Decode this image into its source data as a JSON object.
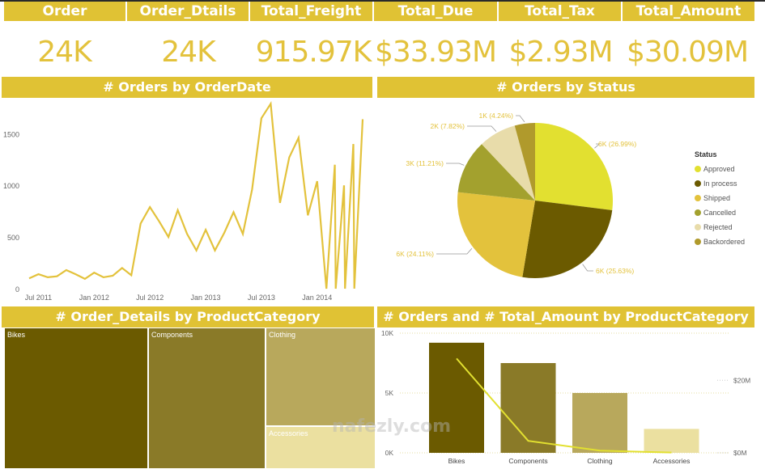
{
  "kpis": [
    {
      "label": "Order",
      "value": "24K"
    },
    {
      "label": "Order_Dtails",
      "value": "24K"
    },
    {
      "label": "Total_Freight",
      "value": "915.97K"
    },
    {
      "label": "Total_Due",
      "value": "$33.93M"
    },
    {
      "label": "Total_Tax",
      "value": "$2.93M"
    },
    {
      "label": "Total_Amount",
      "value": "$30.09M"
    }
  ],
  "colors": {
    "header_gold": "#e0c234",
    "kpi_text": "#e3c23c",
    "line": "#e3c23c"
  },
  "watermark": "nafezly.com",
  "chart_data": [
    {
      "type": "line",
      "title": "# Orders by OrderDate",
      "xlabel": "",
      "ylabel": "",
      "ylim": [
        0,
        1800
      ],
      "yticks": [
        "0",
        "500",
        "1000",
        "1500"
      ],
      "ytick_values": [
        0,
        500,
        1000,
        1500
      ],
      "xticks": [
        "Jul 2011",
        "Jan 2012",
        "Jul 2012",
        "Jan 2013",
        "Jul 2013",
        "Jan 2014"
      ],
      "xtick_positions": [
        1,
        7,
        13,
        19,
        25,
        31
      ],
      "x": [
        0,
        1,
        2,
        3,
        4,
        5,
        6,
        7,
        8,
        9,
        10,
        11,
        12,
        13,
        14,
        15,
        16,
        17,
        18,
        19,
        20,
        21,
        22,
        23,
        24,
        25,
        26,
        27,
        28,
        29,
        30,
        31,
        32,
        32.9,
        33,
        33.9,
        34,
        34.9,
        35,
        35.9
      ],
      "values": [
        100,
        140,
        110,
        120,
        180,
        140,
        95,
        155,
        110,
        125,
        200,
        130,
        630,
        790,
        650,
        500,
        760,
        530,
        370,
        570,
        370,
        540,
        740,
        530,
        960,
        1650,
        1790,
        830,
        1270,
        1460,
        710,
        1040,
        0,
        1200,
        0,
        1000,
        0,
        1400,
        0,
        1640
      ],
      "grid": false
    },
    {
      "type": "pie",
      "title": "# Orders by Status",
      "legend_title": "Status",
      "legend_position": "right",
      "slices": [
        {
          "name": "Approved",
          "label": "6K (26.99%)",
          "percent": 26.99,
          "color": "#e2e030"
        },
        {
          "name": "In process",
          "label": "6K (25.63%)",
          "percent": 25.63,
          "color": "#6b5a00"
        },
        {
          "name": "Shipped",
          "label": "6K (24.11%)",
          "percent": 24.11,
          "color": "#e3c23c"
        },
        {
          "name": "Cancelled",
          "label": "3K (11.21%)",
          "percent": 11.21,
          "color": "#a3a12e"
        },
        {
          "name": "Rejected",
          "label": "2K (7.82%)",
          "percent": 7.82,
          "color": "#e8dcaa"
        },
        {
          "name": "Backordered",
          "label": "1K (4.24%)",
          "percent": 4.24,
          "color": "#b09a2c"
        }
      ]
    },
    {
      "type": "treemap",
      "title": "# Order_Details by ProductCategory",
      "categories": [
        {
          "name": "Bikes",
          "color": "#6b5a00"
        },
        {
          "name": "Components",
          "color": "#8a7a28"
        },
        {
          "name": "Clothing",
          "color": "#b8a85c"
        },
        {
          "name": "Accessories",
          "color": "#ebe0a0"
        }
      ]
    },
    {
      "type": "bar",
      "title": "# Orders and # Total_Amount by ProductCategory",
      "categories": [
        "Bikes",
        "Components",
        "Clothing",
        "Accessories"
      ],
      "series": [
        {
          "name": "# Orders",
          "type": "bar",
          "values": [
            9200,
            7500,
            5000,
            2000
          ],
          "colors": [
            "#6b5a00",
            "#8a7a28",
            "#b8a85c",
            "#ebe0a0"
          ]
        },
        {
          "name": "# Total_Amount",
          "type": "line",
          "values": [
            26000000,
            3300000,
            600000,
            100000
          ],
          "color": "#e2e030"
        }
      ],
      "ylim": [
        0,
        10000
      ],
      "yticks": [
        "0K",
        "5K",
        "10K"
      ],
      "ytick_values": [
        0,
        5000,
        10000
      ],
      "y2lim": [
        0,
        33000000
      ],
      "y2ticks": [
        "$0M",
        "$20M"
      ],
      "y2tick_values": [
        0,
        20000000
      ],
      "grid": true
    }
  ]
}
